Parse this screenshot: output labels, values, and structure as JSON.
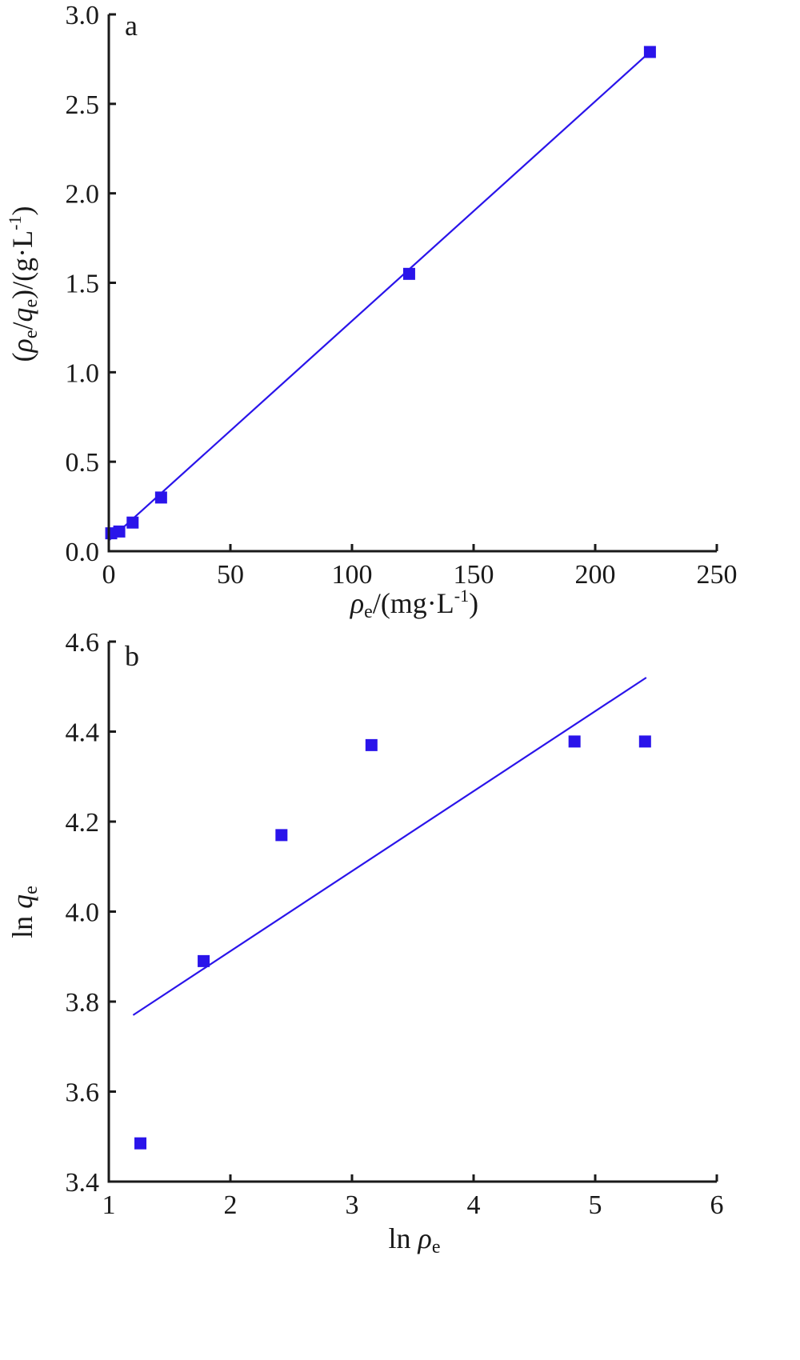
{
  "colors": {
    "series": "#2a14ea",
    "axis": "#1a1a1a"
  },
  "chart_data": [
    {
      "type": "scatter",
      "panel_label": "a",
      "xlabel": "ρe/(mg·L-1)",
      "xlabel_parts": {
        "main": "ρ",
        "sub": "e",
        "rest": "/(mg·L",
        "sup": "-1",
        "end": ")"
      },
      "ylabel": "(ρe/qe)/(g·L-1)",
      "ylabel_parts": {
        "open": "(",
        "rho": "ρ",
        "sub1": "e",
        "slash": "/",
        "q": "q",
        "sub2": "e",
        "mid": ")/(g·L",
        "sup": "-1",
        "end": ")"
      },
      "xlim": [
        0,
        250
      ],
      "ylim": [
        0,
        3.0
      ],
      "x_ticks": [
        0,
        50,
        100,
        150,
        200,
        250
      ],
      "x_tick_labels": [
        "0",
        "50",
        "100",
        "150",
        "200",
        "250"
      ],
      "y_ticks": [
        0,
        0.5,
        1.0,
        1.5,
        2.0,
        2.5,
        3.0
      ],
      "y_tick_labels": [
        "0.0",
        "0.5",
        "1.0",
        "1.5",
        "2.0",
        "2.5",
        "3.0"
      ],
      "points": [
        {
          "x": 1.0,
          "y": 0.1
        },
        {
          "x": 4.3,
          "y": 0.11
        },
        {
          "x": 9.8,
          "y": 0.16
        },
        {
          "x": 21.5,
          "y": 0.3
        },
        {
          "x": 123.5,
          "y": 1.55
        },
        {
          "x": 222.5,
          "y": 2.79
        }
      ],
      "fit_line": {
        "x": [
          0,
          222.5
        ],
        "y": [
          0.06,
          2.79
        ]
      }
    },
    {
      "type": "scatter",
      "panel_label": "b",
      "xlabel": "ln ρe",
      "xlabel_parts": {
        "main": "ln ",
        "rho": "ρ",
        "sub": "e"
      },
      "ylabel": "ln qe",
      "ylabel_parts": {
        "main": "ln ",
        "q": "q",
        "sub": "e"
      },
      "xlim": [
        1,
        6
      ],
      "ylim": [
        3.4,
        4.6
      ],
      "x_ticks": [
        1,
        2,
        3,
        4,
        5,
        6
      ],
      "x_tick_labels": [
        "1",
        "2",
        "3",
        "4",
        "5",
        "6"
      ],
      "y_ticks": [
        3.4,
        3.6,
        3.8,
        4.0,
        4.2,
        4.4,
        4.6
      ],
      "y_tick_labels": [
        "3.4",
        "3.6",
        "3.8",
        "4.0",
        "4.2",
        "4.4",
        "4.6"
      ],
      "points": [
        {
          "x": 1.26,
          "y": 3.485
        },
        {
          "x": 1.78,
          "y": 3.89
        },
        {
          "x": 2.42,
          "y": 4.17
        },
        {
          "x": 3.16,
          "y": 4.37
        },
        {
          "x": 4.83,
          "y": 4.378
        },
        {
          "x": 5.41,
          "y": 4.378
        }
      ],
      "fit_line": {
        "x": [
          1.2,
          5.42
        ],
        "y": [
          3.77,
          4.52
        ]
      }
    }
  ]
}
